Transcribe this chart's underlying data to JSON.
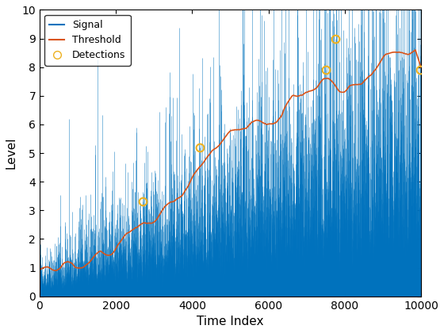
{
  "n_points": 10000,
  "seed": 42,
  "signal_color": "#0072BD",
  "threshold_color": "#D95319",
  "detection_color": "#EDB120",
  "xlabel": "Time Index",
  "ylabel": "Level",
  "xlim": [
    0,
    10000
  ],
  "ylim": [
    0,
    10
  ],
  "yticks": [
    0,
    1,
    2,
    3,
    4,
    5,
    6,
    7,
    8,
    9,
    10
  ],
  "xticks": [
    0,
    2000,
    4000,
    6000,
    8000,
    10000
  ],
  "figsize": [
    5.6,
    4.2
  ],
  "dpi": 100,
  "detection_x": [
    2700,
    4200,
    7500,
    7750,
    9980
  ],
  "detection_y": [
    3.3,
    5.2,
    7.9,
    9.0,
    7.9
  ]
}
